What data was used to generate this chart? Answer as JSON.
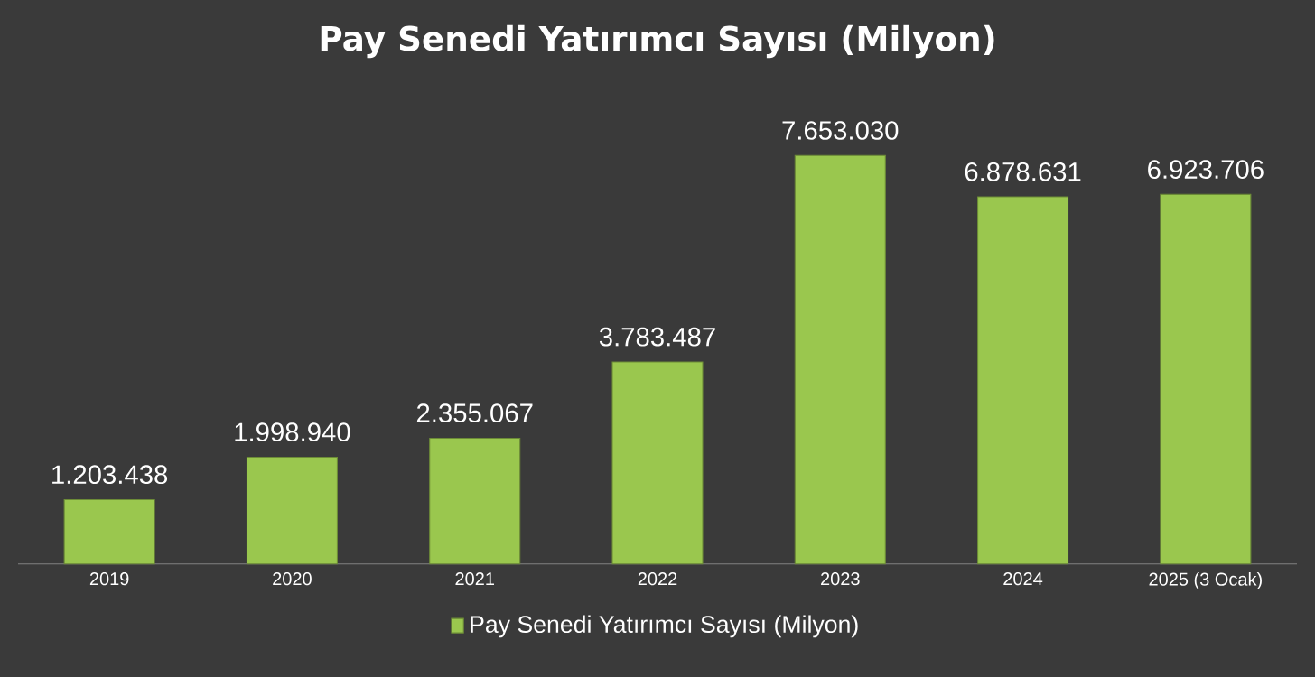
{
  "chart_data": {
    "type": "bar",
    "title": "Pay Senedi Yatırımcı Sayısı (Milyon)",
    "categories": [
      "2019",
      "2020",
      "2021",
      "2022",
      "2023",
      "2024",
      "2025 (3 Ocak)"
    ],
    "series": [
      {
        "name": "Pay Senedi Yatırımcı Sayısı (Milyon)",
        "color": "#9ac74e",
        "values": [
          1203438,
          1998940,
          2355067,
          3783487,
          7653030,
          6878631,
          6923706
        ],
        "value_labels": [
          "1.203.438",
          "1.998.940",
          "2.355.067",
          "3.783.487",
          "7.653.030",
          "6.878.631",
          "6.923.706"
        ]
      }
    ],
    "legend": "bottom",
    "tick_labels": "x"
  }
}
